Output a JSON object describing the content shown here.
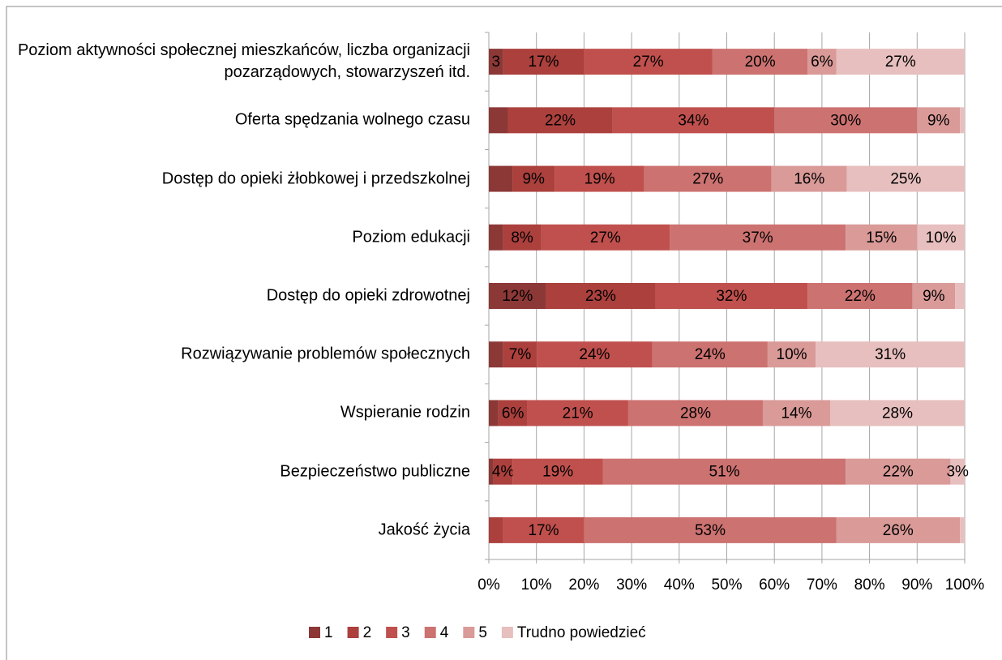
{
  "chart_data": {
    "type": "stacked_barh",
    "categories": [
      "Poziom aktywności społecznej mieszkańców, liczba organizacji pozarządowych, stowarzyszeń itd.",
      "Oferta spędzania wolnego czasu",
      "Dostęp do opieki żłobkowej i przedszkolnej",
      "Poziom edukacji",
      "Dostęp do opieki zdrowotnej",
      "Rozwiązywanie problemów społecznych",
      "Wspieranie rodzin",
      "Bezpieczeństwo publiczne",
      "Jakość życia"
    ],
    "series": [
      {
        "name": "1",
        "color": "#8c3836",
        "values": [
          3,
          4,
          5,
          3,
          12,
          3,
          2,
          1,
          0
        ],
        "value_labels": [
          "3",
          null,
          null,
          null,
          "12%",
          null,
          null,
          null,
          null
        ]
      },
      {
        "name": "2",
        "color": "#ab403d",
        "values": [
          17,
          22,
          9,
          8,
          23,
          7,
          6,
          4,
          3
        ],
        "value_labels": [
          "17%",
          "22%",
          "9%",
          "8%",
          "23%",
          "7%",
          "6%",
          "4%",
          null
        ]
      },
      {
        "name": "3",
        "color": "#c0504d",
        "values": [
          27,
          34,
          19,
          27,
          32,
          24,
          21,
          19,
          17
        ],
        "value_labels": [
          "27%",
          "34%",
          "19%",
          "27%",
          "32%",
          "24%",
          "21%",
          "19%",
          "17%"
        ]
      },
      {
        "name": "4",
        "color": "#cc7270",
        "values": [
          20,
          30,
          27,
          37,
          22,
          24,
          28,
          51,
          53
        ],
        "value_labels": [
          "20%",
          "30%",
          "27%",
          "37%",
          "22%",
          "24%",
          "28%",
          "51%",
          "53%"
        ]
      },
      {
        "name": "5",
        "color": "#d99a98",
        "values": [
          6,
          9,
          16,
          15,
          9,
          10,
          14,
          22,
          26
        ],
        "value_labels": [
          "6%",
          "9%",
          "16%",
          "15%",
          "9%",
          "10%",
          "14%",
          "22%",
          "26%"
        ]
      },
      {
        "name": "Trudno powiedzieć",
        "color": "#e6bfbe",
        "values": [
          27,
          1,
          25,
          10,
          2,
          31,
          28,
          3,
          1
        ],
        "value_labels": [
          "27%",
          null,
          "25%",
          "10%",
          null,
          "31%",
          "28%",
          "3%",
          null
        ]
      }
    ],
    "xlim": [
      0,
      100
    ],
    "xticks": [
      {
        "value": 0,
        "label": "0%"
      },
      {
        "value": 10,
        "label": "10%"
      },
      {
        "value": 20,
        "label": "20%"
      },
      {
        "value": 30,
        "label": "30%"
      },
      {
        "value": 40,
        "label": "40%"
      },
      {
        "value": 50,
        "label": "50%"
      },
      {
        "value": 60,
        "label": "60%"
      },
      {
        "value": 70,
        "label": "70%"
      },
      {
        "value": 80,
        "label": "80%"
      },
      {
        "value": 90,
        "label": "90%"
      },
      {
        "value": 100,
        "label": "100%"
      }
    ],
    "grid": true,
    "legend": "bottom"
  }
}
